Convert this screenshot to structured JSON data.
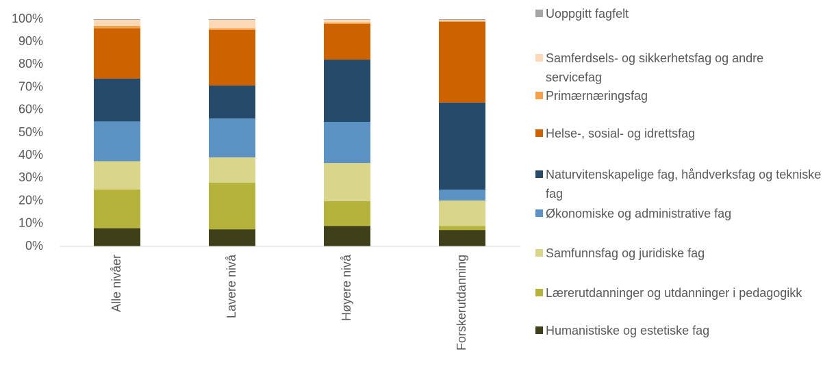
{
  "chart_data": {
    "type": "stacked_bar",
    "categories": [
      "Alle nivåer",
      "Lavere nivå",
      "Høyere nivå",
      "Forskerutdanning"
    ],
    "series": [
      {
        "name": "Humanistiske og estetiske fag",
        "color": "#3f3f1a",
        "values": [
          8,
          7.5,
          9,
          7.2
        ]
      },
      {
        "name": "Lærerutdanninger og utdanninger i pedagogikk",
        "color": "#b5b33b",
        "values": [
          17,
          20.5,
          10.9,
          1.8
        ]
      },
      {
        "name": "Samfunnsfag og juridiske fag",
        "color": "#d9d58a",
        "values": [
          12.5,
          11.2,
          16.8,
          11.2
        ]
      },
      {
        "name": "Økonomiske og administrative fag",
        "color": "#5b92c3",
        "values": [
          17.5,
          17.1,
          18.1,
          4.8
        ]
      },
      {
        "name": "Naturvitenskapelige fag, håndverksfag og tekniske fag",
        "color": "#264a69",
        "values": [
          18.8,
          14.5,
          27.4,
          38.3
        ]
      },
      {
        "name": "Helse-, sosial- og idrettsfag",
        "color": "#cc6200",
        "values": [
          22.2,
          24.4,
          15.7,
          35.5
        ]
      },
      {
        "name": "Primærnæringsfag",
        "color": "#f4a04a",
        "values": [
          1,
          0.8,
          0.6,
          0.3
        ]
      },
      {
        "name": "Samferdsels- og sikkerhetsfag og andre servicefag",
        "color": "#fdd9b6",
        "values": [
          2.7,
          3.7,
          1.3,
          0.5
        ]
      },
      {
        "name": "Uoppgitt fagfelt",
        "color": "#a5a5a5",
        "values": [
          0.3,
          0.3,
          0.2,
          0.4
        ]
      }
    ],
    "ylim": [
      0,
      100
    ],
    "yticks": [
      {
        "value": 0,
        "label": "0%"
      },
      {
        "value": 10,
        "label": "10%"
      },
      {
        "value": 20,
        "label": "20%"
      },
      {
        "value": 30,
        "label": "30%"
      },
      {
        "value": 40,
        "label": "40%"
      },
      {
        "value": 50,
        "label": "50%"
      },
      {
        "value": 60,
        "label": "60%"
      },
      {
        "value": 70,
        "label": "70%"
      },
      {
        "value": 80,
        "label": "80%"
      },
      {
        "value": 90,
        "label": "90%"
      },
      {
        "value": 100,
        "label": "100%"
      }
    ],
    "legend": "right"
  }
}
